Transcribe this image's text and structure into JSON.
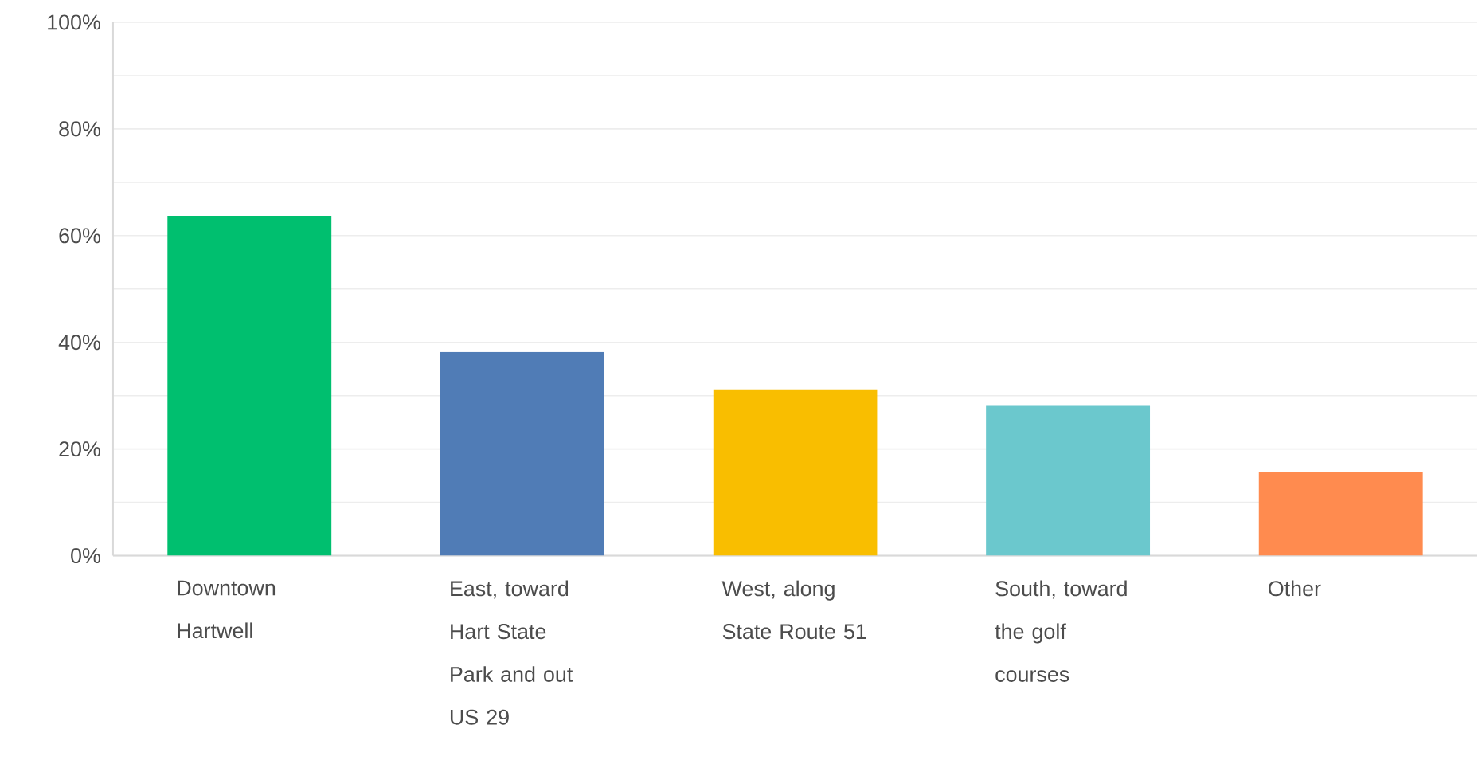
{
  "chart_data": {
    "type": "bar",
    "categories": [
      "Downtown Hartwell",
      "East, toward Hart State Park and out US 29",
      "West, along State Route 51",
      "South, toward the golf courses",
      "Other"
    ],
    "values": [
      63.7,
      38.2,
      31.2,
      28.1,
      15.7
    ],
    "colors": [
      "#00bf6f",
      "#507cb6",
      "#f9be00",
      "#6bc8cd",
      "#ff8b4f"
    ],
    "ylim": [
      0,
      100
    ],
    "yticks": [
      {
        "value": 0,
        "label": "0%"
      },
      {
        "value": 10,
        "label": null
      },
      {
        "value": 20,
        "label": "20%"
      },
      {
        "value": 30,
        "label": null
      },
      {
        "value": 40,
        "label": "40%"
      },
      {
        "value": 50,
        "label": null
      },
      {
        "value": 60,
        "label": "60%"
      },
      {
        "value": 70,
        "label": null
      },
      {
        "value": 80,
        "label": "80%"
      },
      {
        "value": 90,
        "label": null
      },
      {
        "value": 100,
        "label": "100%"
      }
    ],
    "grid": "y"
  }
}
